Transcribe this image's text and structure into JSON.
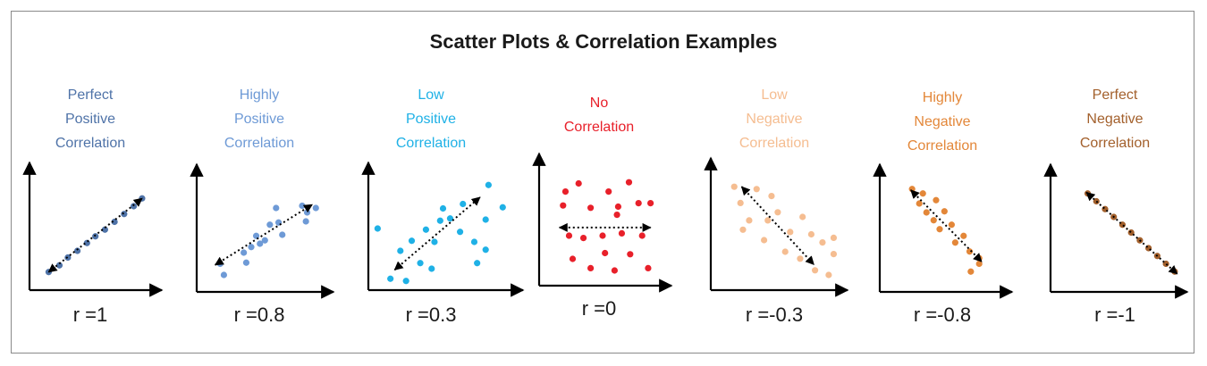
{
  "title": "Scatter Plots & Correlation Examples",
  "panels": [
    {
      "heading": [
        "Perfect",
        "Positive",
        "Correlation"
      ],
      "r_label": "r =1",
      "color": "#4f73a8",
      "points": [
        [
          0.13,
          0.13
        ],
        [
          0.22,
          0.19
        ],
        [
          0.29,
          0.26
        ],
        [
          0.37,
          0.32
        ],
        [
          0.45,
          0.39
        ],
        [
          0.52,
          0.45
        ],
        [
          0.6,
          0.51
        ],
        [
          0.68,
          0.58
        ],
        [
          0.76,
          0.65
        ],
        [
          0.84,
          0.72
        ],
        [
          0.91,
          0.79
        ]
      ],
      "arrow": [
        [
          0.13,
          0.13
        ],
        [
          0.91,
          0.79
        ]
      ]
    },
    {
      "heading": [
        "Highly",
        "Positive",
        "Correlation"
      ],
      "r_label": "r =0.8",
      "color": "#6e9ad6",
      "points": [
        [
          0.16,
          0.22
        ],
        [
          0.19,
          0.12
        ],
        [
          0.35,
          0.32
        ],
        [
          0.41,
          0.37
        ],
        [
          0.37,
          0.23
        ],
        [
          0.45,
          0.47
        ],
        [
          0.52,
          0.43
        ],
        [
          0.56,
          0.57
        ],
        [
          0.63,
          0.59
        ],
        [
          0.61,
          0.72
        ],
        [
          0.66,
          0.48
        ],
        [
          0.82,
          0.74
        ],
        [
          0.85,
          0.6
        ],
        [
          0.93,
          0.72
        ],
        [
          0.86,
          0.68
        ],
        [
          0.48,
          0.4
        ]
      ],
      "arrow": [
        [
          0.12,
          0.21
        ],
        [
          0.9,
          0.75
        ]
      ]
    },
    {
      "heading": [
        "Low",
        "Positive",
        "Correlation"
      ],
      "r_label": "r =0.3",
      "color": "#1fb1e6",
      "points": [
        [
          0.04,
          0.52
        ],
        [
          0.13,
          0.07
        ],
        [
          0.24,
          0.05
        ],
        [
          0.2,
          0.32
        ],
        [
          0.28,
          0.41
        ],
        [
          0.34,
          0.21
        ],
        [
          0.38,
          0.51
        ],
        [
          0.44,
          0.4
        ],
        [
          0.42,
          0.16
        ],
        [
          0.5,
          0.7
        ],
        [
          0.55,
          0.61
        ],
        [
          0.62,
          0.49
        ],
        [
          0.72,
          0.4
        ],
        [
          0.8,
          0.33
        ],
        [
          0.64,
          0.74
        ],
        [
          0.8,
          0.6
        ],
        [
          0.82,
          0.91
        ],
        [
          0.92,
          0.71
        ],
        [
          0.74,
          0.21
        ],
        [
          0.48,
          0.59
        ]
      ],
      "arrow": [
        [
          0.16,
          0.15
        ],
        [
          0.76,
          0.8
        ]
      ]
    },
    {
      "heading": [
        "No",
        "Correlation"
      ],
      "r_label": "r =0",
      "color": "#e8202a",
      "points": [
        [
          0.19,
          0.78
        ],
        [
          0.3,
          0.85
        ],
        [
          0.4,
          0.64
        ],
        [
          0.55,
          0.78
        ],
        [
          0.63,
          0.65
        ],
        [
          0.72,
          0.86
        ],
        [
          0.8,
          0.68
        ],
        [
          0.17,
          0.66
        ],
        [
          0.22,
          0.4
        ],
        [
          0.34,
          0.38
        ],
        [
          0.5,
          0.4
        ],
        [
          0.66,
          0.42
        ],
        [
          0.83,
          0.4
        ],
        [
          0.25,
          0.2
        ],
        [
          0.4,
          0.12
        ],
        [
          0.52,
          0.25
        ],
        [
          0.6,
          0.1
        ],
        [
          0.73,
          0.24
        ],
        [
          0.88,
          0.12
        ],
        [
          0.62,
          0.58
        ],
        [
          0.9,
          0.68
        ]
      ],
      "arrow": [
        [
          0.14,
          0.47
        ],
        [
          0.9,
          0.47
        ]
      ]
    },
    {
      "heading": [
        "Low",
        "Negative",
        "Correlation"
      ],
      "r_label": "r =-0.3",
      "color": "#f5bd91",
      "points": [
        [
          0.16,
          0.86
        ],
        [
          0.21,
          0.72
        ],
        [
          0.34,
          0.84
        ],
        [
          0.46,
          0.78
        ],
        [
          0.51,
          0.64
        ],
        [
          0.61,
          0.47
        ],
        [
          0.71,
          0.6
        ],
        [
          0.78,
          0.45
        ],
        [
          0.87,
          0.38
        ],
        [
          0.96,
          0.42
        ],
        [
          0.28,
          0.57
        ],
        [
          0.23,
          0.49
        ],
        [
          0.4,
          0.4
        ],
        [
          0.57,
          0.3
        ],
        [
          0.69,
          0.24
        ],
        [
          0.81,
          0.14
        ],
        [
          0.92,
          0.1
        ],
        [
          0.96,
          0.28
        ],
        [
          0.43,
          0.57
        ]
      ],
      "arrow": [
        [
          0.22,
          0.86
        ],
        [
          0.8,
          0.19
        ]
      ]
    },
    {
      "heading": [
        "Highly",
        "Negative",
        "Correlation"
      ],
      "r_label": "r =-0.8",
      "color": "#e38739",
      "points": [
        [
          0.24,
          0.89
        ],
        [
          0.33,
          0.85
        ],
        [
          0.36,
          0.68
        ],
        [
          0.44,
          0.79
        ],
        [
          0.51,
          0.69
        ],
        [
          0.47,
          0.53
        ],
        [
          0.57,
          0.57
        ],
        [
          0.6,
          0.41
        ],
        [
          0.67,
          0.47
        ],
        [
          0.72,
          0.33
        ],
        [
          0.8,
          0.27
        ],
        [
          0.8,
          0.22
        ],
        [
          0.42,
          0.61
        ],
        [
          0.3,
          0.76
        ],
        [
          0.73,
          0.15
        ]
      ],
      "arrow": [
        [
          0.23,
          0.88
        ],
        [
          0.82,
          0.24
        ]
      ]
    },
    {
      "heading": [
        "Perfect",
        "Negative",
        "Correlation"
      ],
      "r_label": "r =-1",
      "color": "#a3602c",
      "points": [
        [
          0.27,
          0.85
        ],
        [
          0.34,
          0.78
        ],
        [
          0.41,
          0.71
        ],
        [
          0.48,
          0.64
        ],
        [
          0.55,
          0.57
        ],
        [
          0.62,
          0.5
        ],
        [
          0.69,
          0.43
        ],
        [
          0.76,
          0.36
        ],
        [
          0.83,
          0.29
        ],
        [
          0.9,
          0.22
        ],
        [
          0.97,
          0.15
        ]
      ],
      "arrow": [
        [
          0.26,
          0.86
        ],
        [
          0.99,
          0.13
        ]
      ]
    }
  ]
}
